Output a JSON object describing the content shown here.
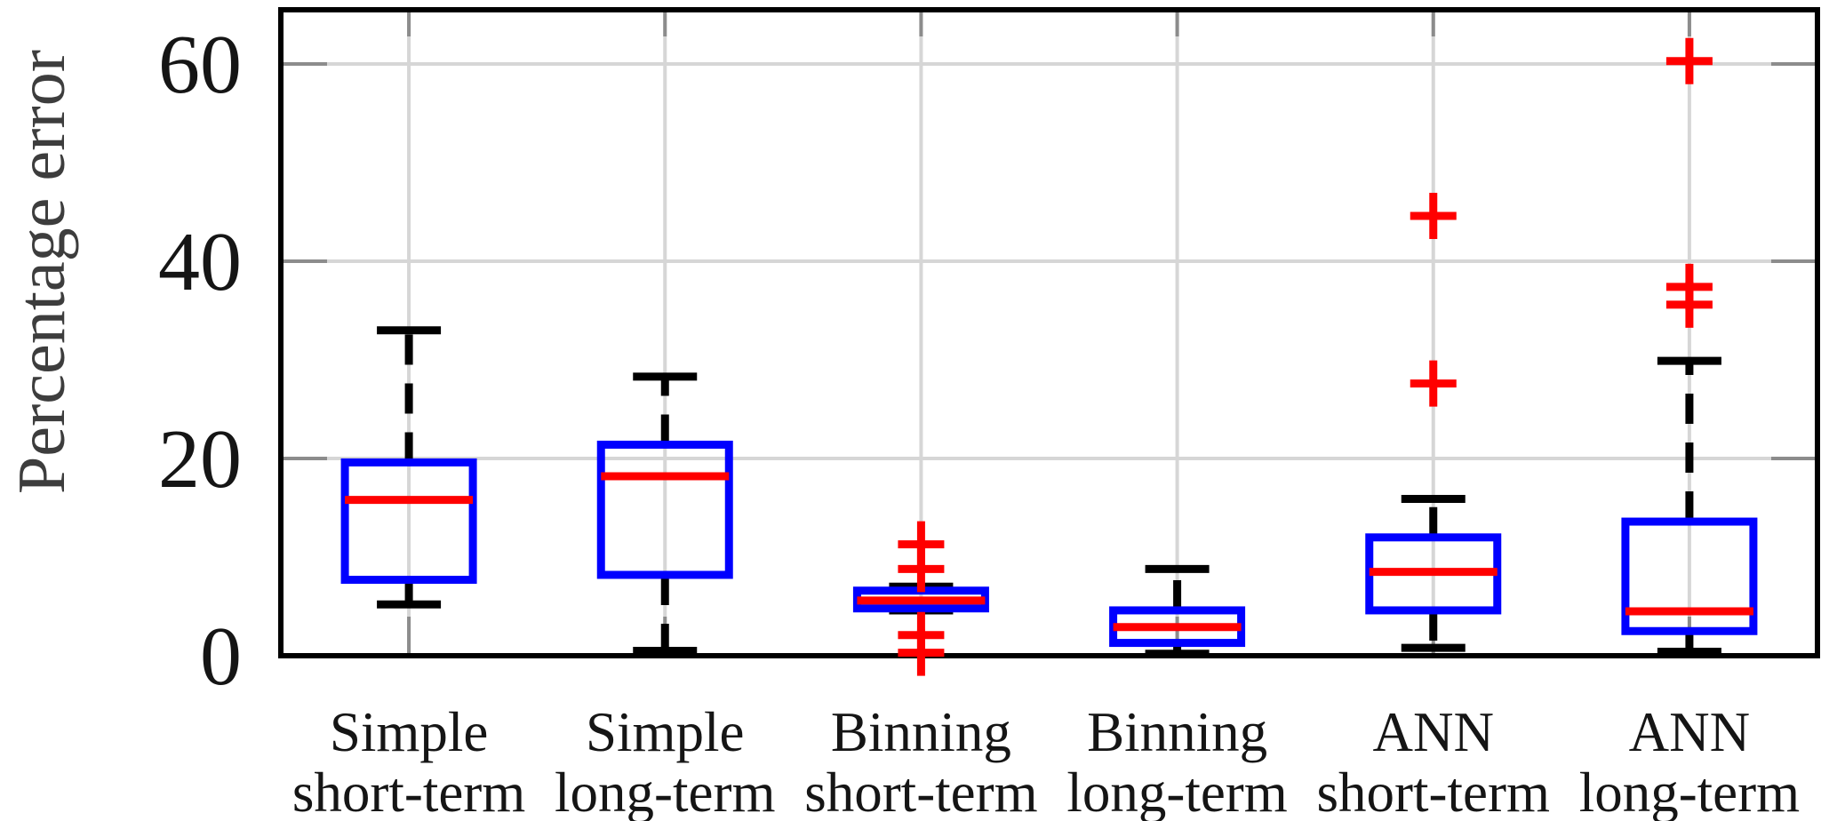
{
  "figure": {
    "kind": "boxplot-figure",
    "background": "#ffffff"
  },
  "chart_data": {
    "type": "boxplot",
    "title": "",
    "xlabel": "",
    "ylabel": "Percentage error",
    "ylim": [
      0,
      65.5
    ],
    "yticks": [
      0,
      20,
      40,
      60
    ],
    "grid": true,
    "legend": "none",
    "colors": {
      "box": "#0000ff",
      "median": "#ff0000",
      "whisker": "#000000",
      "cap": "#000000",
      "outlier": "#ff0000",
      "gridline": "#d6d6d6",
      "tickmark": "#8c8c8c",
      "border": "#000000",
      "tick_label": "#151515",
      "axis_label": "#3d3d3d"
    },
    "categories": [
      {
        "line1": "Simple",
        "line2": "short-term"
      },
      {
        "line1": "Simple",
        "line2": "long-term"
      },
      {
        "line1": "Binning",
        "line2": "short-term"
      },
      {
        "line1": "Binning",
        "line2": "long-term"
      },
      {
        "line1": "ANN",
        "line2": "short-term"
      },
      {
        "line1": "ANN",
        "line2": "long-term"
      }
    ],
    "series": [
      {
        "label": "Simple short-term",
        "whisker_low": 5.2,
        "q1": 7.7,
        "median": 15.8,
        "q3": 19.6,
        "whisker_high": 33.0,
        "outliers": []
      },
      {
        "label": "Simple long-term",
        "whisker_low": 0.5,
        "q1": 8.2,
        "median": 18.2,
        "q3": 21.4,
        "whisker_high": 28.3,
        "outliers": []
      },
      {
        "label": "Binning short-term",
        "whisker_low": 4.6,
        "q1": 4.8,
        "median": 5.6,
        "q3": 6.6,
        "whisker_high": 7.0,
        "outliers": [
          0.3,
          2.1,
          8.8,
          11.3
        ]
      },
      {
        "label": "Binning long-term",
        "whisker_low": 0.2,
        "q1": 1.3,
        "median": 2.9,
        "q3": 4.6,
        "whisker_high": 8.8,
        "outliers": []
      },
      {
        "label": "ANN short-term",
        "whisker_low": 0.8,
        "q1": 4.6,
        "median": 8.5,
        "q3": 12.0,
        "whisker_high": 15.9,
        "outliers": [
          27.6,
          44.6
        ]
      },
      {
        "label": "ANN long-term",
        "whisker_low": 0.4,
        "q1": 2.5,
        "median": 4.5,
        "q3": 13.6,
        "whisker_high": 29.9,
        "outliers": [
          35.6,
          37.4,
          60.3
        ]
      }
    ]
  }
}
